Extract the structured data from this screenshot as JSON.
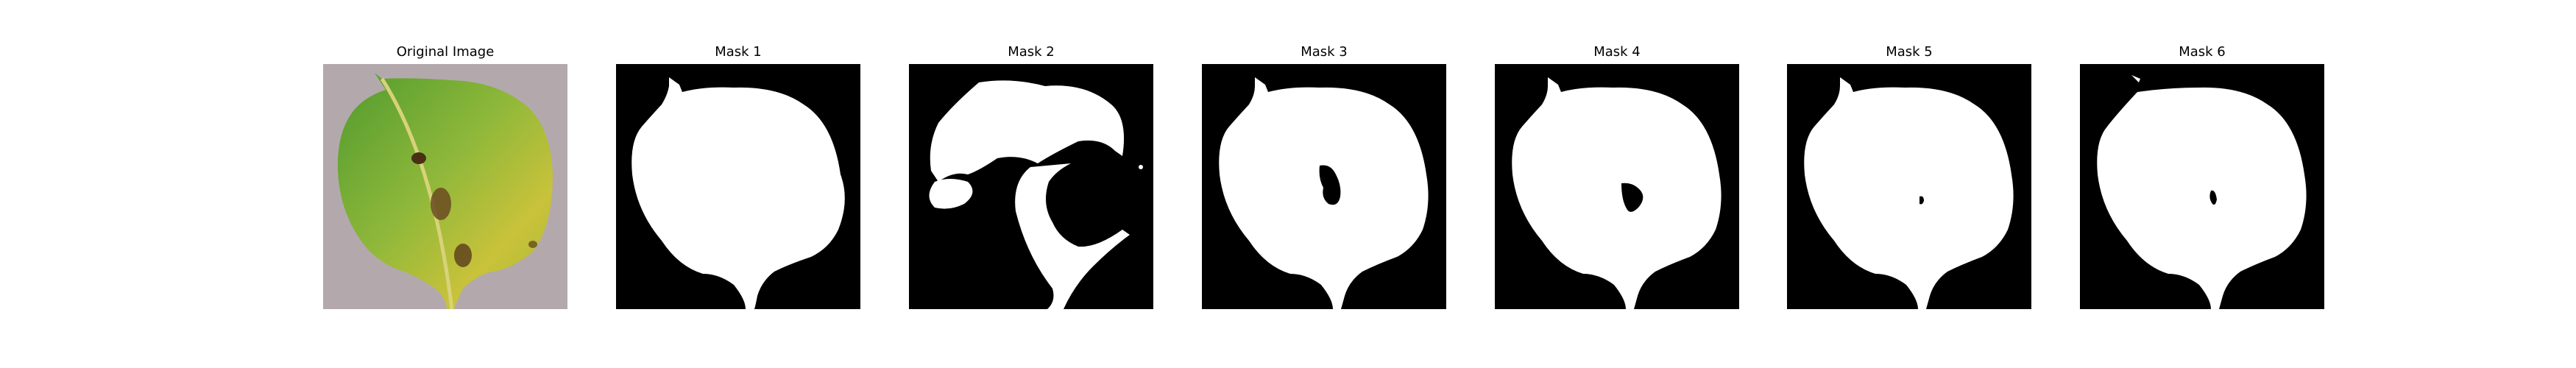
{
  "panels": [
    {
      "title": "Original Image",
      "kind": "photo"
    },
    {
      "title": "Mask 1",
      "kind": "mask"
    },
    {
      "title": "Mask 2",
      "kind": "mask"
    },
    {
      "title": "Mask 3",
      "kind": "mask"
    },
    {
      "title": "Mask 4",
      "kind": "mask"
    },
    {
      "title": "Mask 5",
      "kind": "mask"
    },
    {
      "title": "Mask 6",
      "kind": "mask"
    }
  ],
  "colors": {
    "mask_foreground": "#ffffff",
    "mask_background": "#000000",
    "photo_background": "#b3a9ad",
    "leaf_green": "#6fae3a",
    "leaf_yellow": "#c9c23a",
    "lesion": "#5a3b1c"
  }
}
